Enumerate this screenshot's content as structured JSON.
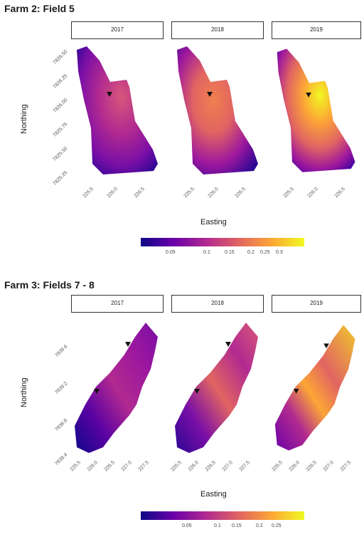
{
  "farm2": {
    "title": "Farm 2: Field 5",
    "years": [
      "2017",
      "2018",
      "2019"
    ],
    "ylabel": "Northing",
    "xlabel": "Easting",
    "yticks": [
      "7826.50",
      "7826.25",
      "7826.00",
      "7825.75",
      "7825.50",
      "7825.25"
    ],
    "xticks": [
      "225.5",
      "226.0",
      "226.5"
    ],
    "legend_labels": [
      "0.05",
      "0.1",
      "0.15",
      "0.2",
      "0.25",
      "0.3"
    ]
  },
  "farm3": {
    "title": "Farm 3: Fields 7 - 8",
    "years": [
      "2017",
      "2018",
      "2019"
    ],
    "ylabel": "Northing",
    "xlabel": "Easting",
    "yticks": [
      "7839.6",
      "7839.2",
      "7838.8",
      "7838.4"
    ],
    "xticks": [
      "225.5",
      "226.0",
      "226.5",
      "227.0",
      "227.5"
    ],
    "legend_labels": [
      "0.05",
      "0.1",
      "0.15",
      "0.2",
      "0.25"
    ]
  },
  "colors": {
    "low": "#0d0887",
    "mid_low": "#6a00a8",
    "mid": "#b12a90",
    "mid_high": "#e16462",
    "high": "#fca636",
    "top": "#f0f921",
    "marker": "#111111"
  }
}
